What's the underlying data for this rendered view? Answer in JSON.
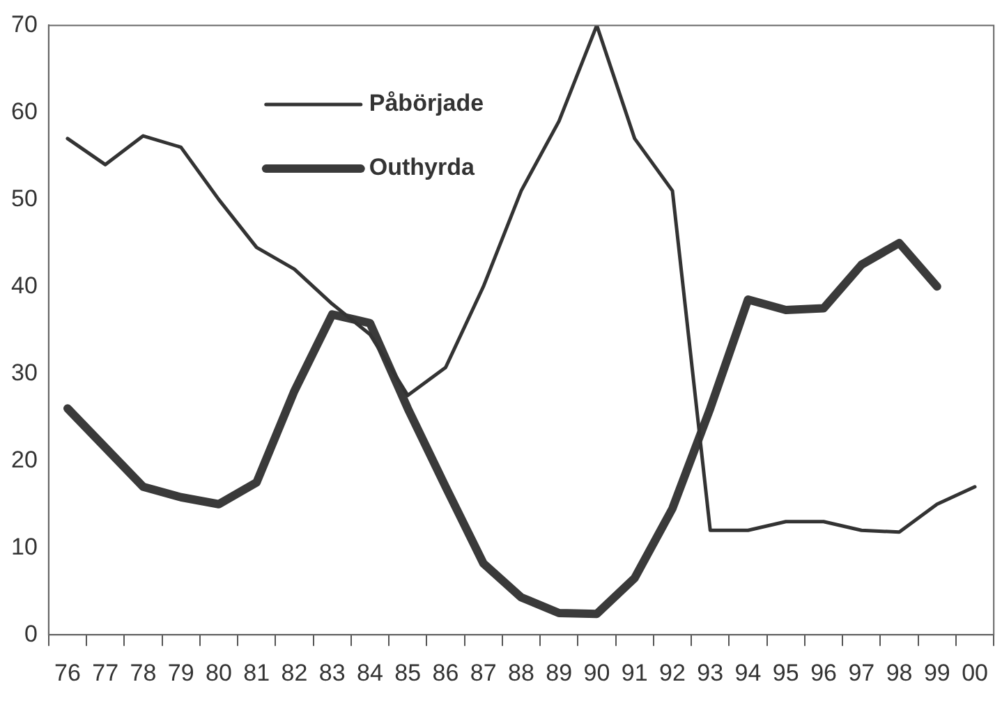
{
  "chart_data": {
    "type": "line",
    "categories": [
      "76",
      "77",
      "78",
      "79",
      "80",
      "81",
      "82",
      "83",
      "84",
      "85",
      "86",
      "87",
      "88",
      "89",
      "90",
      "91",
      "92",
      "93",
      "94",
      "95",
      "96",
      "97",
      "98",
      "99",
      "00"
    ],
    "series": [
      {
        "name": "Påbörjade",
        "color": "#333333",
        "values": [
          57,
          54,
          57.3,
          56,
          50,
          44.5,
          42,
          38,
          34.5,
          27.5,
          30.7,
          40,
          51,
          59,
          70,
          57,
          51,
          12,
          12,
          13,
          13,
          12,
          11.8,
          15,
          17
        ]
      },
      {
        "name": "Outhyrda",
        "color": "#3a3a3a",
        "values": [
          26,
          21.5,
          17,
          15.8,
          15,
          17.5,
          28,
          36.8,
          35.8,
          26,
          17,
          8.2,
          4.3,
          2.5,
          2.4,
          6.5,
          14.5,
          26,
          38.5,
          37.3,
          37.5,
          42.5,
          45,
          40,
          null
        ]
      }
    ],
    "ylim": [
      0,
      70
    ],
    "yticks": [
      0,
      10,
      20,
      30,
      40,
      50,
      60,
      70
    ],
    "grid": false,
    "legend": "top left",
    "marker": "none",
    "line_style": "solid"
  }
}
